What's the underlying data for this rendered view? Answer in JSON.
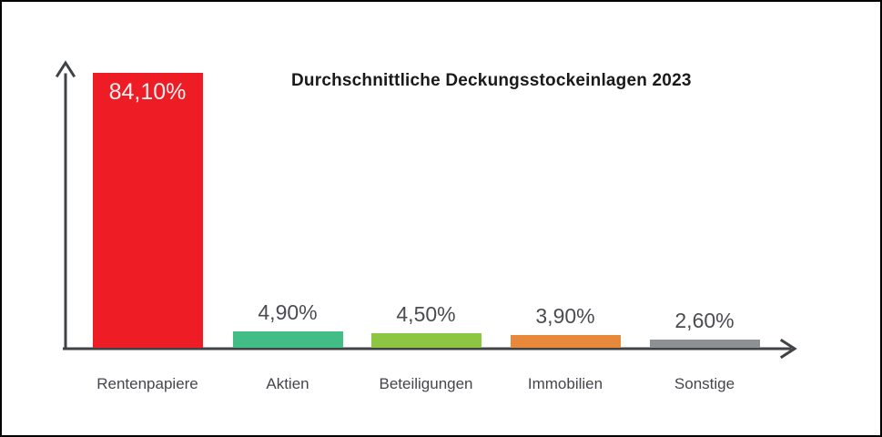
{
  "chart_data": {
    "type": "bar",
    "title": "Durchschnittliche Deckungsstockeinlagen 2023",
    "categories": [
      "Rentenpapiere",
      "Aktien",
      "Beteiligungen",
      "Immobilien",
      "Sonstige"
    ],
    "values": [
      84.1,
      4.9,
      4.5,
      3.9,
      2.6
    ],
    "value_labels": [
      "84,10%",
      "4,90%",
      "4,50%",
      "3,90%",
      "2,60%"
    ],
    "bar_colors": [
      "#ee1c25",
      "#41bd85",
      "#8cc643",
      "#e8883a",
      "#8e9194"
    ],
    "value_label_inside": [
      true,
      false,
      false,
      false,
      false
    ],
    "xlabel": "",
    "ylabel": "",
    "ylim": [
      0,
      100
    ],
    "grid": false,
    "legend": "none",
    "axis_color": "#404346",
    "inside_value_label_color": "#f6efef",
    "outside_value_label_color": "#4b4b52",
    "category_label_color": "#45454d",
    "background": "#ffffff",
    "frame_color": "#000000"
  }
}
